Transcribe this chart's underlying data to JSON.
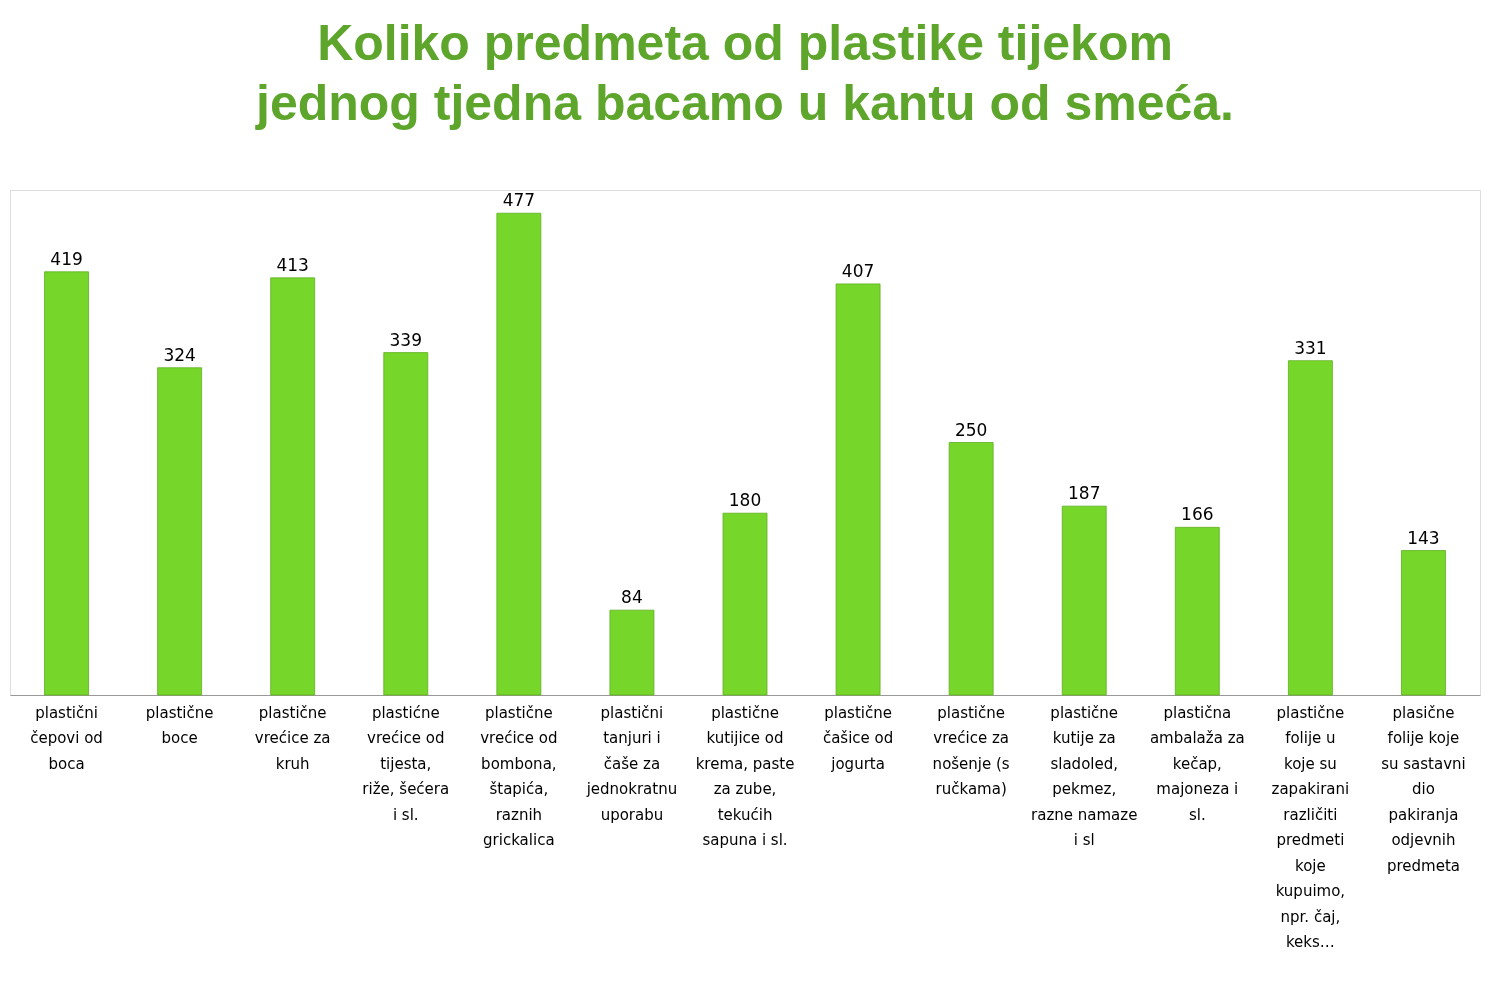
{
  "chart_data": {
    "type": "bar",
    "title": "Koliko predmeta od plastike tijekom jednog tjedna bacamo u kantu od smeća.",
    "categories": [
      "plastični čepovi od boca",
      "plastične boce",
      "plastične vrećice za kruh",
      "plastićne vrećice od tijesta, riže, šećera i sl.",
      "plastične vrećice od bombona, štapića, raznih grickalica",
      "plastični tanjuri i čaše za jednokratnu uporabu",
      "plastične kutijice od krema, paste za zube, tekućih sapuna i sl.",
      "plastične čašice od jogurta",
      "plastične vrećice za nošenje (s ručkama)",
      "plastične kutije za sladoled, pekmez, razne namaze i sl",
      "plastična ambalaža za kečap, majoneza i sl.",
      "plastične folije u koje su zapakirani različiti predmeti koje kupuimo, npr. čaj, keks…",
      "plasične folije koje su sastavni dio pakiranja odjevnih predmeta"
    ],
    "values": [
      419,
      324,
      413,
      339,
      477,
      84,
      180,
      407,
      250,
      187,
      166,
      331,
      143
    ],
    "color": "#76d62a",
    "data_labels": true,
    "grid": false
  }
}
